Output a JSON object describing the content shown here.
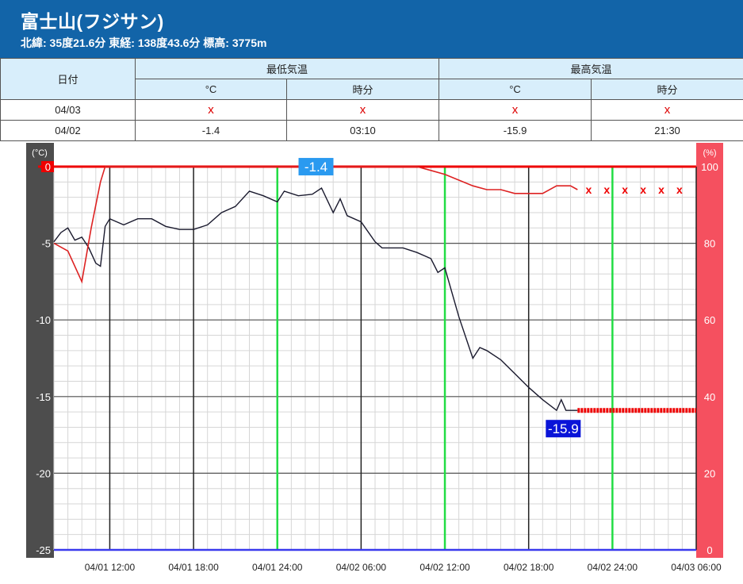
{
  "header": {
    "title": "富士山(フジサン)",
    "subtitle": "北緯: 35度21.6分 東経: 138度43.6分 標高: 3775m"
  },
  "table": {
    "date_header": "日付",
    "min_header": "最低気温",
    "max_header": "最高気温",
    "unit_celsius": "°C",
    "unit_time": "時分",
    "rows": [
      {
        "date": "04/03",
        "min_val": "x",
        "min_time": "x",
        "max_val": "x",
        "max_time": "x"
      },
      {
        "date": "04/02",
        "min_val": "-1.4",
        "min_time": "03:10",
        "max_val": "-15.9",
        "max_time": "21:30"
      }
    ]
  },
  "chart_data": {
    "type": "line",
    "left_axis_unit": "(°C)",
    "right_axis_unit": "(%)",
    "y_left_range": [
      -25,
      0
    ],
    "y_right_range": [
      0,
      100
    ],
    "y_left_ticks": [
      "0",
      "-5",
      "-10",
      "-15",
      "-20",
      "-25"
    ],
    "y_right_ticks": [
      "100",
      "80",
      "60",
      "40",
      "20",
      "0"
    ],
    "x_range": [
      "04/01 08:00",
      "04/03 06:00"
    ],
    "x_tick_labels": [
      "04/01 12:00",
      "04/01 18:00",
      "04/01 24:00",
      "04/02 06:00",
      "04/02 12:00",
      "04/02 18:00",
      "04/02 24:00",
      "04/03 06:00"
    ],
    "grid": true,
    "annotations": [
      {
        "label": "-1.4",
        "x": "04/02 03:10",
        "y": -1.4
      },
      {
        "label": "-15.9",
        "x": "04/02 21:30",
        "y": -15.9
      }
    ],
    "series": [
      {
        "axis": "left",
        "color": "#1a1a2e",
        "points": [
          [
            "04/01 08:00",
            -4.9
          ],
          [
            "04/01 08:30",
            -4.3
          ],
          [
            "04/01 09:00",
            -4.0
          ],
          [
            "04/01 09:30",
            -4.8
          ],
          [
            "04/01 10:00",
            -4.6
          ],
          [
            "04/01 10:30",
            -5.3
          ],
          [
            "04/01 11:00",
            -6.3
          ],
          [
            "04/01 11:20",
            -6.5
          ],
          [
            "04/01 11:40",
            -3.9
          ],
          [
            "04/01 12:00",
            -3.4
          ],
          [
            "04/01 13:00",
            -3.8
          ],
          [
            "04/01 14:00",
            -3.4
          ],
          [
            "04/01 15:00",
            -3.4
          ],
          [
            "04/01 16:00",
            -3.9
          ],
          [
            "04/01 17:00",
            -4.1
          ],
          [
            "04/01 18:00",
            -4.1
          ],
          [
            "04/01 19:00",
            -3.8
          ],
          [
            "04/01 20:00",
            -3.0
          ],
          [
            "04/01 21:00",
            -2.6
          ],
          [
            "04/01 22:00",
            -1.6
          ],
          [
            "04/01 23:00",
            -1.9
          ],
          [
            "04/01 24:00",
            -2.3
          ],
          [
            "04/02 00:30",
            -1.6
          ],
          [
            "04/02 01:30",
            -1.9
          ],
          [
            "04/02 02:30",
            -1.8
          ],
          [
            "04/02 03:10",
            -1.4
          ],
          [
            "04/02 04:00",
            -3.0
          ],
          [
            "04/02 04:30",
            -2.1
          ],
          [
            "04/02 05:00",
            -3.2
          ],
          [
            "04/02 06:00",
            -3.6
          ],
          [
            "04/02 07:00",
            -4.9
          ],
          [
            "04/02 07:30",
            -5.3
          ],
          [
            "04/02 09:00",
            -5.3
          ],
          [
            "04/02 10:00",
            -5.6
          ],
          [
            "04/02 11:00",
            -6.0
          ],
          [
            "04/02 11:30",
            -6.9
          ],
          [
            "04/02 12:00",
            -6.6
          ],
          [
            "04/02 13:00",
            -9.8
          ],
          [
            "04/02 14:00",
            -12.5
          ],
          [
            "04/02 14:30",
            -11.8
          ],
          [
            "04/02 15:00",
            -12.0
          ],
          [
            "04/02 16:00",
            -12.6
          ],
          [
            "04/02 17:00",
            -13.5
          ],
          [
            "04/02 18:00",
            -14.4
          ],
          [
            "04/02 19:00",
            -15.2
          ],
          [
            "04/02 20:00",
            -15.9
          ],
          [
            "04/02 20:20",
            -15.2
          ],
          [
            "04/02 20:40",
            -15.9
          ],
          [
            "04/02 21:30",
            -15.9
          ]
        ]
      },
      {
        "axis": "right",
        "color": "#d22",
        "points": [
          [
            "04/01 08:00",
            80
          ],
          [
            "04/01 09:00",
            78
          ],
          [
            "04/01 10:00",
            70
          ],
          [
            "04/01 10:40",
            84
          ],
          [
            "04/01 11:20",
            96
          ],
          [
            "04/01 11:40",
            100
          ],
          [
            "04/02 10:00",
            100
          ],
          [
            "04/02 11:00",
            99
          ],
          [
            "04/02 12:00",
            98
          ],
          [
            "04/02 14:00",
            95
          ],
          [
            "04/02 15:00",
            94
          ],
          [
            "04/02 16:00",
            94
          ],
          [
            "04/02 17:00",
            93
          ],
          [
            "04/02 18:00",
            93
          ],
          [
            "04/02 19:00",
            93
          ],
          [
            "04/02 20:00",
            95
          ],
          [
            "04/02 21:00",
            95
          ],
          [
            "04/02 21:30",
            94
          ]
        ]
      }
    ],
    "missing_markers_pct": "x",
    "missing_temp_color": "#e00"
  }
}
